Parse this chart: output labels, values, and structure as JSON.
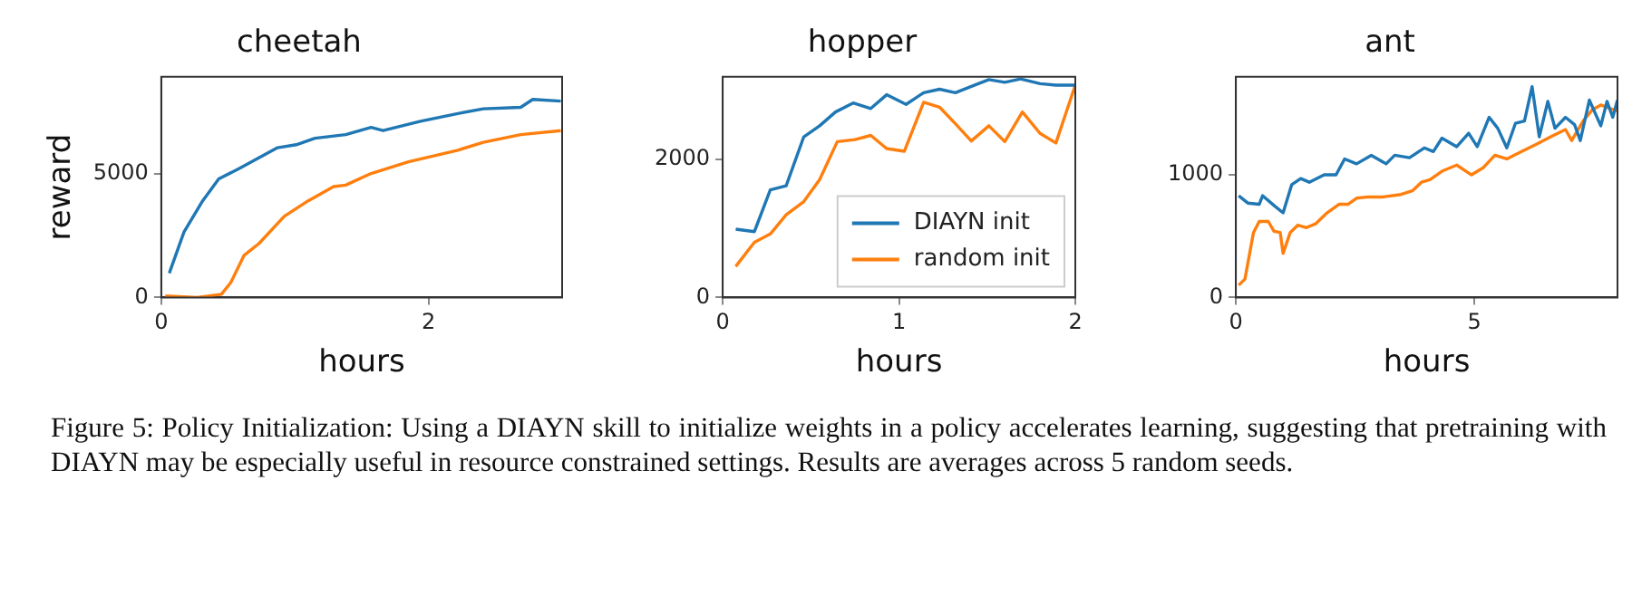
{
  "chart_data": [
    {
      "type": "line",
      "title": "cheetah",
      "xlabel": "hours",
      "ylabel": "reward",
      "xlim": [
        0,
        3
      ],
      "ylim": [
        0,
        8900
      ],
      "xticks": [
        0,
        2
      ],
      "yticks": [
        0,
        5000
      ],
      "grid": false,
      "legend": false,
      "marker": "none",
      "line_style": "solid",
      "series": [
        {
          "color": "#1f77b4",
          "x": [
            0.06,
            0.17,
            0.31,
            0.43,
            0.59,
            0.73,
            0.87,
            1.01,
            1.15,
            1.38,
            1.57,
            1.66,
            1.94,
            2.22,
            2.41,
            2.69,
            2.78,
            2.99
          ],
          "values": [
            980,
            2640,
            3900,
            4780,
            5220,
            5630,
            6040,
            6160,
            6420,
            6570,
            6860,
            6730,
            7110,
            7420,
            7610,
            7670,
            7990,
            7920
          ]
        },
        {
          "color": "#ff7f0e",
          "x": [
            0.03,
            0.27,
            0.45,
            0.52,
            0.62,
            0.73,
            0.92,
            1.1,
            1.29,
            1.38,
            1.57,
            1.85,
            2.22,
            2.41,
            2.69,
            2.99
          ],
          "values": [
            60,
            0,
            130,
            600,
            1700,
            2170,
            3270,
            3900,
            4470,
            4530,
            5000,
            5470,
            5940,
            6260,
            6570,
            6730
          ]
        }
      ]
    },
    {
      "type": "line",
      "title": "hopper",
      "xlabel": "hours",
      "xlim": [
        0,
        2
      ],
      "ylim": [
        0,
        3200
      ],
      "xticks": [
        0,
        1,
        2
      ],
      "yticks": [
        0,
        2000
      ],
      "grid": false,
      "legend": "bottom right",
      "marker": "none",
      "line_style": "solid",
      "series": [
        {
          "name": "DIAYN init",
          "color": "#1f77b4",
          "x": [
            0.074,
            0.18,
            0.27,
            0.36,
            0.46,
            0.55,
            0.64,
            0.74,
            0.84,
            0.93,
            1.04,
            1.14,
            1.23,
            1.32,
            1.43,
            1.51,
            1.6,
            1.69,
            1.8,
            1.89,
            2.0
          ],
          "values": [
            990,
            955,
            1560,
            1620,
            2330,
            2490,
            2690,
            2820,
            2740,
            2940,
            2800,
            2970,
            3020,
            2970,
            3080,
            3160,
            3120,
            3170,
            3100,
            3080,
            3080
          ]
        },
        {
          "name": "random init",
          "color": "#ff7f0e",
          "x": [
            0.074,
            0.18,
            0.27,
            0.36,
            0.46,
            0.55,
            0.65,
            0.75,
            0.84,
            0.93,
            1.03,
            1.14,
            1.23,
            1.32,
            1.41,
            1.51,
            1.6,
            1.7,
            1.8,
            1.89,
            2.0
          ],
          "values": [
            450,
            800,
            920,
            1200,
            1390,
            1710,
            2260,
            2290,
            2350,
            2160,
            2120,
            2830,
            2760,
            2520,
            2270,
            2490,
            2260,
            2690,
            2380,
            2240,
            3080
          ]
        }
      ]
    },
    {
      "type": "line",
      "title": "ant",
      "xlabel": "hours",
      "xlim": [
        0,
        8
      ],
      "ylim": [
        0,
        1800
      ],
      "xticks": [
        0,
        5
      ],
      "yticks": [
        0,
        1000
      ],
      "grid": false,
      "legend": false,
      "marker": "none",
      "line_style": "solid",
      "annotations": [
        "Figure 5: Policy Initialization: Using a DIAYN skill to initialize weights in a policy accelerates learning, suggesting that pretraining with DIAYN may be especially useful in resource constrained settings. Results are averages across 5 random seeds."
      ],
      "series": [
        {
          "color": "#1f77b4",
          "x": [
            0.06,
            0.25,
            0.49,
            0.56,
            0.8,
            0.99,
            1.17,
            1.36,
            1.54,
            1.85,
            2.1,
            2.28,
            2.53,
            2.84,
            3.15,
            3.33,
            3.64,
            3.95,
            4.14,
            4.32,
            4.63,
            4.88,
            5.06,
            5.31,
            5.49,
            5.68,
            5.86,
            6.05,
            6.21,
            6.36,
            6.54,
            6.69,
            6.91,
            7.1,
            7.22,
            7.41,
            7.65,
            7.78,
            7.9,
            8.0
          ],
          "values": [
            830,
            770,
            760,
            830,
            750,
            690,
            920,
            970,
            940,
            1000,
            1000,
            1130,
            1090,
            1160,
            1090,
            1160,
            1140,
            1220,
            1190,
            1300,
            1230,
            1340,
            1230,
            1470,
            1380,
            1220,
            1420,
            1440,
            1720,
            1310,
            1600,
            1380,
            1470,
            1410,
            1280,
            1610,
            1400,
            1600,
            1470,
            1610
          ]
        },
        {
          "color": "#ff7f0e",
          "x": [
            0.06,
            0.19,
            0.37,
            0.49,
            0.68,
            0.8,
            0.93,
            0.99,
            1.14,
            1.3,
            1.48,
            1.67,
            1.91,
            2.16,
            2.35,
            2.53,
            2.78,
            3.09,
            3.46,
            3.7,
            3.89,
            4.07,
            4.32,
            4.63,
            4.94,
            5.19,
            5.43,
            5.68,
            5.99,
            6.3,
            6.6,
            6.91,
            7.04,
            7.28,
            7.47,
            7.65,
            8.0
          ],
          "values": [
            100,
            150,
            530,
            620,
            620,
            540,
            530,
            360,
            530,
            590,
            570,
            600,
            690,
            760,
            760,
            810,
            820,
            820,
            840,
            870,
            940,
            960,
            1030,
            1080,
            1000,
            1060,
            1160,
            1130,
            1190,
            1250,
            1310,
            1370,
            1280,
            1440,
            1530,
            1570,
            1520
          ]
        }
      ]
    }
  ]
}
